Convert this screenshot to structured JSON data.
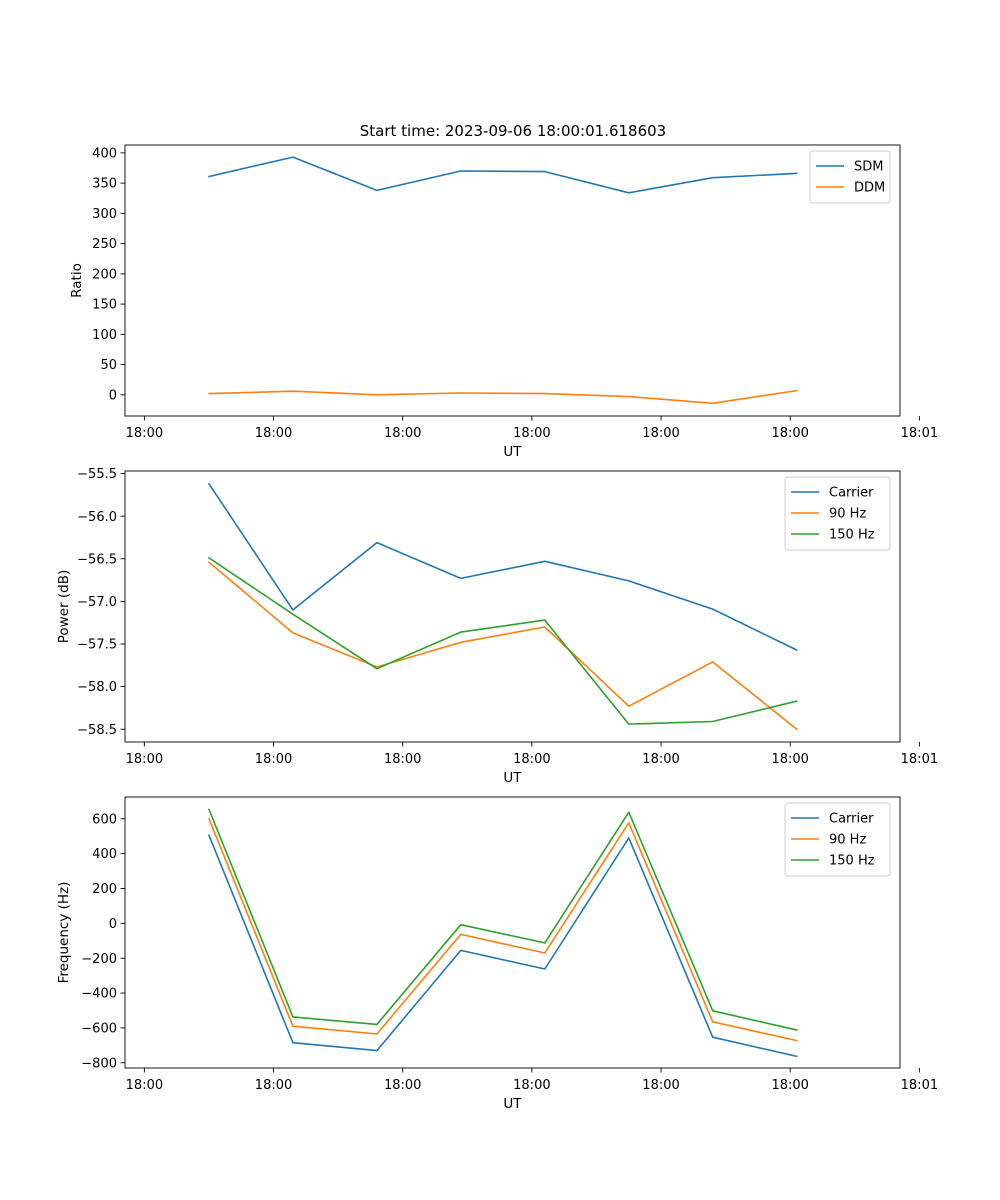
{
  "figure": {
    "title": "Start time: 2023-09-06 18:00:01.618603"
  },
  "colors": {
    "blue": "#1f77b4",
    "orange": "#ff7f0e",
    "green": "#2ca02c"
  },
  "chart_data": [
    {
      "type": "line",
      "title": "Start time: 2023-09-06 18:00:01.618603",
      "xlabel": "UT",
      "ylabel": "Ratio",
      "x": [
        0.5,
        1.15,
        1.8,
        2.45,
        3.1,
        3.75,
        4.4,
        5.05
      ],
      "xlim": [
        -0.15,
        5.85
      ],
      "xticks": [
        0,
        1,
        2,
        3,
        4,
        5,
        6
      ],
      "xticklabels": [
        "18:00",
        "18:00",
        "18:00",
        "18:00",
        "18:00",
        "18:00",
        "18:01"
      ],
      "ylim": [
        -35,
        413
      ],
      "yticks": [
        0,
        50,
        100,
        150,
        200,
        250,
        300,
        350,
        400
      ],
      "yticklabels": [
        "0",
        "50",
        "100",
        "150",
        "200",
        "250",
        "300",
        "350",
        "400"
      ],
      "legend": "top-right",
      "series": [
        {
          "name": "SDM",
          "color": "blue",
          "values": [
            361,
            393,
            338,
            370,
            369,
            334,
            359,
            366
          ]
        },
        {
          "name": "DDM",
          "color": "orange",
          "values": [
            2,
            6,
            0,
            3,
            2,
            -3,
            -14,
            7
          ]
        }
      ]
    },
    {
      "type": "line",
      "title": "",
      "xlabel": "UT",
      "ylabel": "Power (dB)",
      "x": [
        0.5,
        1.15,
        1.8,
        2.45,
        3.1,
        3.75,
        4.4,
        5.05
      ],
      "xlim": [
        -0.15,
        5.85
      ],
      "xticks": [
        0,
        1,
        2,
        3,
        4,
        5,
        6
      ],
      "xticklabels": [
        "18:00",
        "18:00",
        "18:00",
        "18:00",
        "18:00",
        "18:00",
        "18:01"
      ],
      "ylim": [
        -58.65,
        -55.47
      ],
      "yticks": [
        -58.5,
        -58.0,
        -57.5,
        -57.0,
        -56.5,
        -56.0,
        -55.5
      ],
      "yticklabels": [
        "−58.5",
        "−58.0",
        "−57.5",
        "−57.0",
        "−56.5",
        "−56.0",
        "−55.5"
      ],
      "legend": "top-right",
      "series": [
        {
          "name": "Carrier",
          "color": "blue",
          "values": [
            -55.62,
            -57.1,
            -56.31,
            -56.73,
            -56.53,
            -56.76,
            -57.09,
            -57.57
          ]
        },
        {
          "name": "90 Hz",
          "color": "orange",
          "values": [
            -56.54,
            -57.37,
            -57.77,
            -57.48,
            -57.3,
            -58.23,
            -57.71,
            -58.5
          ]
        },
        {
          "name": "150 Hz",
          "color": "green",
          "values": [
            -56.49,
            -57.15,
            -57.79,
            -57.36,
            -57.22,
            -58.44,
            -58.41,
            -58.17
          ]
        }
      ]
    },
    {
      "type": "line",
      "title": "",
      "xlabel": "UT",
      "ylabel": "Frequency (Hz)",
      "x": [
        0.5,
        1.15,
        1.8,
        2.45,
        3.1,
        3.75,
        4.4,
        5.05
      ],
      "xlim": [
        -0.15,
        5.85
      ],
      "xticks": [
        0,
        1,
        2,
        3,
        4,
        5,
        6
      ],
      "xticklabels": [
        "18:00",
        "18:00",
        "18:00",
        "18:00",
        "18:00",
        "18:00",
        "18:01"
      ],
      "ylim": [
        -830,
        725
      ],
      "yticks": [
        -800,
        -600,
        -400,
        -200,
        0,
        200,
        400,
        600
      ],
      "yticklabels": [
        "−800",
        "−600",
        "−400",
        "−200",
        "0",
        "200",
        "400",
        "600"
      ],
      "legend": "top-right",
      "series": [
        {
          "name": "Carrier",
          "color": "blue",
          "values": [
            505,
            -685,
            -730,
            -155,
            -262,
            490,
            -653,
            -763
          ]
        },
        {
          "name": "90 Hz",
          "color": "orange",
          "values": [
            600,
            -590,
            -635,
            -63,
            -170,
            577,
            -565,
            -673
          ]
        },
        {
          "name": "150 Hz",
          "color": "green",
          "values": [
            653,
            -537,
            -580,
            -8,
            -112,
            638,
            -502,
            -612
          ]
        }
      ]
    }
  ]
}
